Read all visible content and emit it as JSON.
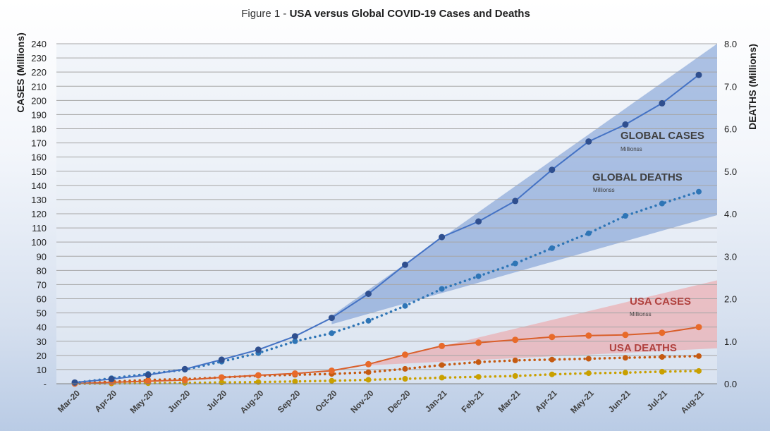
{
  "chart_data": {
    "type": "line",
    "title_prefix": "Figure 1 - ",
    "title_main": "USA versus Global COVID-19 Cases and Deaths",
    "ylabel_left": "CASES (Millions)",
    "ylabel_right": "DEATHS (Millions)",
    "xlabel": "",
    "ylim_left": [
      0,
      240
    ],
    "ylim_right": [
      0.0,
      8.0
    ],
    "yticks_left": [
      "-",
      "10",
      "20",
      "30",
      "40",
      "50",
      "60",
      "70",
      "80",
      "90",
      "100",
      "110",
      "120",
      "130",
      "140",
      "150",
      "160",
      "170",
      "180",
      "190",
      "200",
      "210",
      "220",
      "230",
      "240"
    ],
    "yticks_right": [
      "0.0",
      "1.0",
      "2.0",
      "3.0",
      "4.0",
      "5.0",
      "6.0",
      "7.0",
      "8.0"
    ],
    "grid": true,
    "categories": [
      "Mar-20",
      "Apr-20",
      "May-20",
      "Jun-20",
      "Jul-20",
      "Aug-20",
      "Sep-20",
      "Oct-20",
      "Nov-20",
      "Dec-20",
      "Jan-21",
      "Feb-21",
      "Mar-21",
      "Apr-21",
      "May-21",
      "Jun-21",
      "Jul-21",
      "Aug-21"
    ],
    "series": [
      {
        "axis": "left",
        "style": "solid",
        "color": "#4472c4",
        "marker_color": "#2f4f8f",
        "values": [
          0.9,
          3.3,
          6.2,
          10.3,
          17.0,
          24.0,
          33.5,
          46.5,
          63.5,
          84.0,
          103.5,
          114.5,
          129.0,
          151.0,
          171.0,
          183.0,
          198.0,
          218.0
        ]
      },
      {
        "axis": "right",
        "style": "dotted",
        "color": "#2e75b6",
        "marker_color": "#2e75b6",
        "values": [
          0.02,
          0.13,
          0.23,
          0.33,
          0.52,
          0.72,
          1.0,
          1.19,
          1.48,
          1.83,
          2.23,
          2.53,
          2.83,
          3.19,
          3.54,
          3.95,
          4.24,
          4.52
        ]
      },
      {
        "axis": "left",
        "style": "solid",
        "color": "#d95f2b",
        "marker_color": "#e86a2a",
        "values": [
          0.1,
          1.0,
          1.8,
          2.6,
          4.5,
          6.0,
          7.2,
          9.2,
          13.8,
          20.5,
          26.7,
          29.0,
          31.0,
          33.0,
          34.0,
          34.5,
          36.0,
          40.0
        ]
      },
      {
        "axis": "right",
        "style": "dotted",
        "color": "#c55a11",
        "marker_color": "#c55a11",
        "values": [
          0.0,
          0.05,
          0.09,
          0.11,
          0.15,
          0.19,
          0.21,
          0.23,
          0.27,
          0.35,
          0.44,
          0.51,
          0.55,
          0.57,
          0.59,
          0.61,
          0.63,
          0.65
        ]
      },
      {
        "axis": "left",
        "style": "dotted",
        "color": "#c9a000",
        "marker_color": "#c9a000",
        "values": [
          0.0,
          0.2,
          0.4,
          0.6,
          0.9,
          1.2,
          1.6,
          2.1,
          2.8,
          3.5,
          4.3,
          4.9,
          5.5,
          6.6,
          7.4,
          7.8,
          8.5,
          9.0
        ]
      }
    ],
    "bands": [
      {
        "name": "global",
        "color": "#4472c4",
        "opacity": 0.4,
        "start_x": "Oct-20",
        "start_low": 42,
        "start_high": 48,
        "end_low": 119,
        "end_high": 240
      },
      {
        "name": "usa",
        "color": "#f28b8b",
        "opacity": 0.45,
        "start_x": "Nov-20",
        "start_low": 13,
        "start_high": 14,
        "end_low": 25,
        "end_high": 73
      }
    ],
    "annotations": [
      {
        "text": "GLOBAL CASES",
        "sub": "Millionss",
        "color": "#404040",
        "sub_color": "#404040"
      },
      {
        "text": "GLOBAL DEATHS",
        "sub": "Millionss",
        "color": "#404040",
        "sub_color": "#404040"
      },
      {
        "text": "USA CASES",
        "sub": "Millionss",
        "color": "#b0413e",
        "sub_color": "#404040"
      },
      {
        "text": "USA DEATHS",
        "sub": "",
        "color": "#b0413e",
        "sub_color": "#404040"
      }
    ]
  }
}
